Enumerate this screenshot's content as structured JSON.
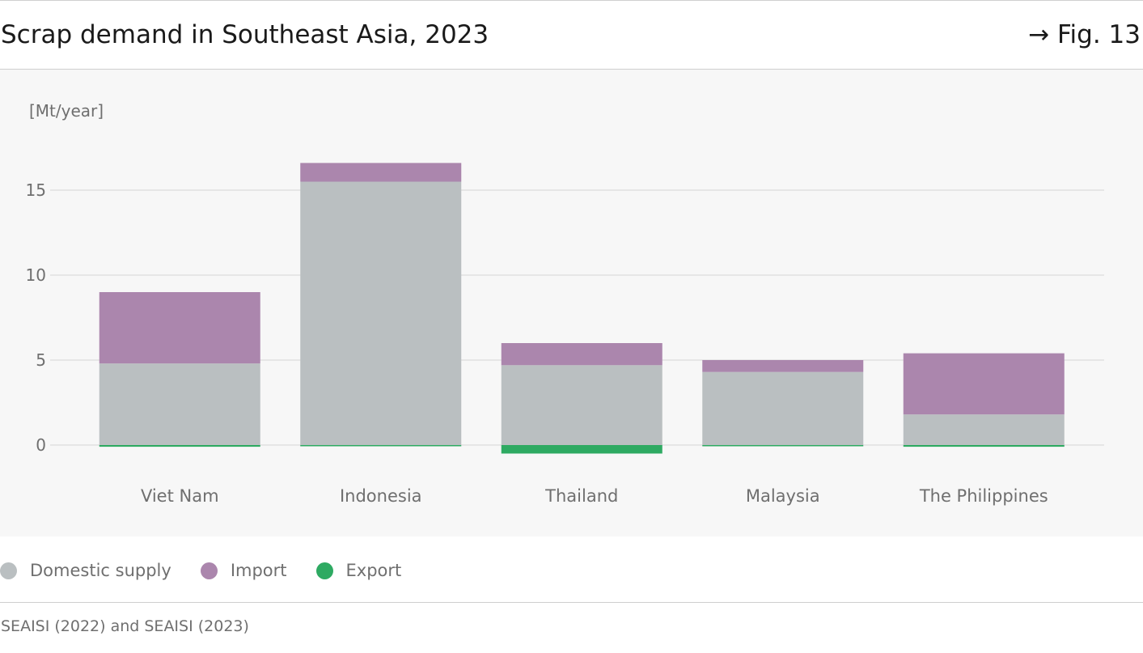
{
  "header": {
    "title": "Scrap demand in Southeast Asia, 2023",
    "figure_ref": "→ Fig. 13"
  },
  "chart_data": {
    "type": "bar",
    "stacked": true,
    "title": "Scrap demand in Southeast Asia, 2023",
    "unit_label": "[Mt/year]",
    "categories": [
      "Viet Nam",
      "Indonesia",
      "Thailand",
      "Malaysia",
      "The Philippines"
    ],
    "series": [
      {
        "name": "Domestic supply",
        "color": "#babfc1",
        "values": [
          4.8,
          15.5,
          4.7,
          4.3,
          1.8
        ]
      },
      {
        "name": "Import",
        "color": "#ab86ad",
        "values": [
          4.2,
          1.1,
          1.3,
          0.7,
          3.6
        ]
      },
      {
        "name": "Export",
        "color": "#2eaa62",
        "values": [
          -0.1,
          -0.05,
          -0.5,
          -0.05,
          -0.1
        ]
      }
    ],
    "yticks": [
      0,
      5,
      10,
      15
    ],
    "ylim": [
      -0.8,
      18
    ],
    "grid": true,
    "legend_position": "bottom-left"
  },
  "legend": [
    {
      "label": "Domestic supply",
      "color": "#babfc1"
    },
    {
      "label": "Import",
      "color": "#ab86ad"
    },
    {
      "label": "Export",
      "color": "#2eaa62"
    }
  ],
  "source": "SEAISI (2022) and SEAISI (2023)"
}
